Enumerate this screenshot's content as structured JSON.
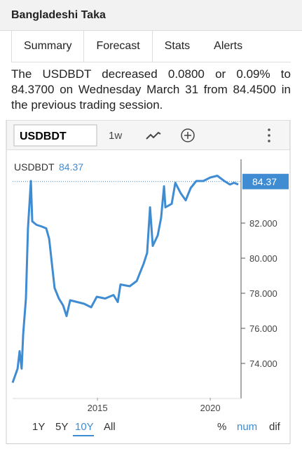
{
  "header": {
    "title": "Bangladeshi Taka"
  },
  "tabs": [
    "Summary",
    "Forecast",
    "Stats",
    "Alerts"
  ],
  "summary": "The USDBDT decreased 0.0800 or 0.09% to 84.3700 on Wednesday March 31 from 84.4500 in the previous trading session.",
  "toolbar": {
    "symbol": "USDBDT",
    "interval": "1w"
  },
  "chart_data": {
    "type": "line",
    "x": [
      2011.24,
      2011.46,
      2011.55,
      2011.64,
      2011.71,
      2011.83,
      2011.92,
      2012.05,
      2012.11,
      2012.3,
      2012.54,
      2012.73,
      2012.86,
      2012.98,
      2013.1,
      2013.29,
      2013.48,
      2013.63,
      2013.79,
      2014.1,
      2014.41,
      2014.72,
      2014.97,
      2015.34,
      2015.71,
      2015.9,
      2016.02,
      2016.43,
      2016.74,
      2017.05,
      2017.2,
      2017.33,
      2017.45,
      2017.67,
      2017.82,
      2017.95,
      2018.01,
      2018.29,
      2018.45,
      2018.69,
      2018.91,
      2019.13,
      2019.38,
      2019.69,
      2020.0,
      2020.31,
      2020.62,
      2020.87,
      2021.05,
      2021.24
    ],
    "series": [
      {
        "name": "USDBDT",
        "color": "#3f8cd2",
        "values": [
          72.9,
          73.7,
          74.7,
          73.7,
          75.7,
          77.7,
          81.7,
          84.4,
          82.1,
          81.9,
          81.8,
          81.7,
          81.1,
          79.7,
          78.3,
          77.7,
          77.3,
          76.7,
          77.6,
          77.5,
          77.4,
          77.2,
          77.8,
          77.7,
          77.9,
          77.5,
          78.5,
          78.4,
          78.7,
          79.7,
          80.3,
          82.9,
          80.7,
          81.3,
          82.3,
          84.1,
          82.9,
          83.1,
          84.3,
          83.7,
          83.3,
          84.0,
          84.4,
          84.4,
          84.6,
          84.7,
          84.4,
          84.2,
          84.3,
          84.2
        ]
      }
    ],
    "last_value": 84.37,
    "xlim": [
      2011.24,
      2021.3
    ],
    "xticks": [
      2015,
      2020
    ],
    "ylim": [
      72.04,
      85.64
    ],
    "yticks": [
      {
        "value": 74,
        "label": "74.000"
      },
      {
        "value": 76,
        "label": "76.000"
      },
      {
        "value": 78,
        "label": "78.000"
      },
      {
        "value": 80,
        "label": "80.000"
      },
      {
        "value": 82,
        "label": "82.000"
      }
    ]
  },
  "ranges": [
    "1Y",
    "5Y",
    "10Y",
    "All"
  ],
  "modes": [
    "%",
    "num",
    "dif"
  ]
}
